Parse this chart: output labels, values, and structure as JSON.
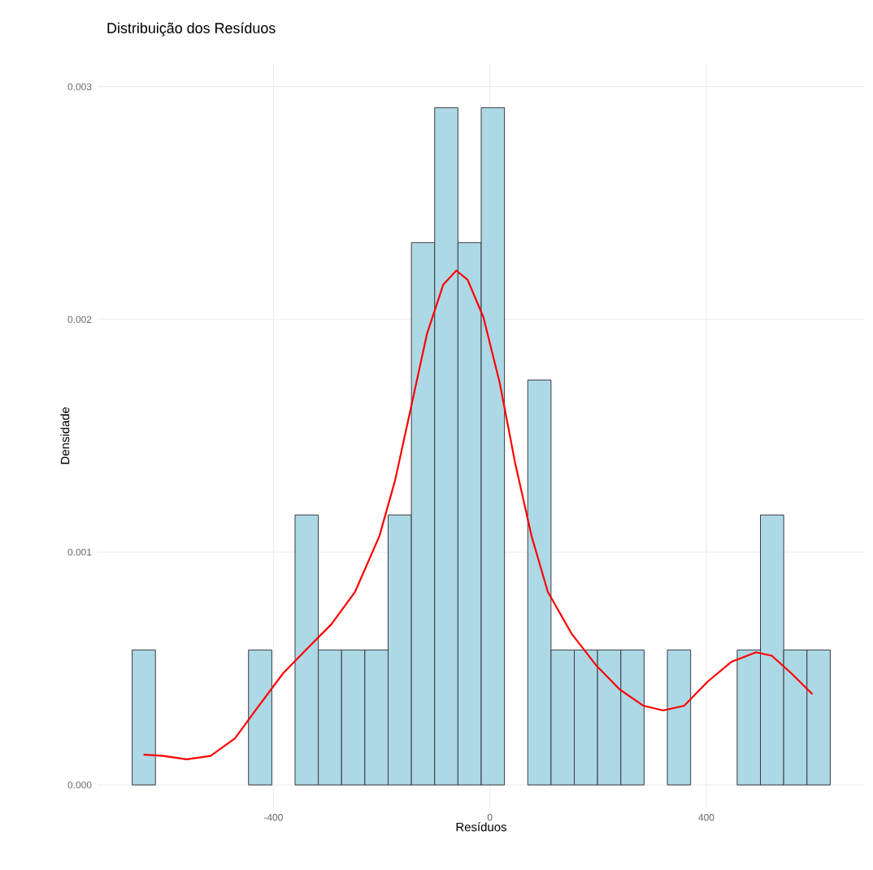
{
  "chart_data": {
    "type": "histogram",
    "title": "Distribuição dos Resíduos",
    "xlabel": "Resíduos",
    "ylabel": "Densidade",
    "bins": [
      -661,
      -618,
      -575,
      -532,
      -489,
      -446,
      -403,
      -360,
      -317,
      -274,
      -231,
      -188,
      -145,
      -102,
      -59,
      -16,
      27,
      70,
      113,
      156,
      199,
      242,
      285,
      328,
      371,
      414,
      457,
      500,
      543,
      586,
      629
    ],
    "values": [
      0.00058,
      0,
      0,
      0,
      0,
      0.00058,
      0,
      0.00116,
      0.00058,
      0.00058,
      0.00058,
      0.00116,
      0.00233,
      0.00291,
      0.00233,
      0.00291,
      0,
      0.00174,
      0.00058,
      0.00058,
      0.00058,
      0.00058,
      0,
      0.00058,
      0,
      0,
      0.00058,
      0.00116,
      0.00058,
      0.00058
    ],
    "color": "#add8e6",
    "series": [
      {
        "type": "line",
        "color": "#ff0000",
        "x": [
          -640,
          -604,
          -560,
          -516,
          -471,
          -427,
          -382,
          -338,
          -293,
          -249,
          -204,
          -175,
          -145,
          -116,
          -86,
          -62,
          -41,
          -12,
          18,
          47,
          77,
          107,
          151,
          196,
          240,
          284,
          320,
          359,
          403,
          447,
          492,
          521,
          557,
          596
        ],
        "values": [
          0.00013,
          0.000125,
          0.00011,
          0.000125,
          0.0002,
          0.00034,
          0.00048,
          0.000585,
          0.00069,
          0.00083,
          0.00107,
          0.00131,
          0.00163,
          0.00194,
          0.00215,
          0.00221,
          0.00217,
          0.00201,
          0.00173,
          0.00138,
          0.00107,
          0.00083,
          0.00065,
          0.000515,
          0.00041,
          0.00034,
          0.00032,
          0.00034,
          0.000445,
          0.00053,
          0.00057,
          0.000555,
          0.00048,
          0.00039
        ]
      }
    ],
    "xlim": [
      -725,
      693
    ],
    "ylim": [
      -0.0001,
      0.0031
    ],
    "xticks": [
      -400,
      0,
      400
    ],
    "yticks": [
      {
        "value": 0,
        "label": "0.000"
      },
      {
        "value": 0.001,
        "label": "0.001"
      },
      {
        "value": 0.002,
        "label": "0.002"
      },
      {
        "value": 0.003,
        "label": "0.003"
      }
    ],
    "grid": true
  }
}
